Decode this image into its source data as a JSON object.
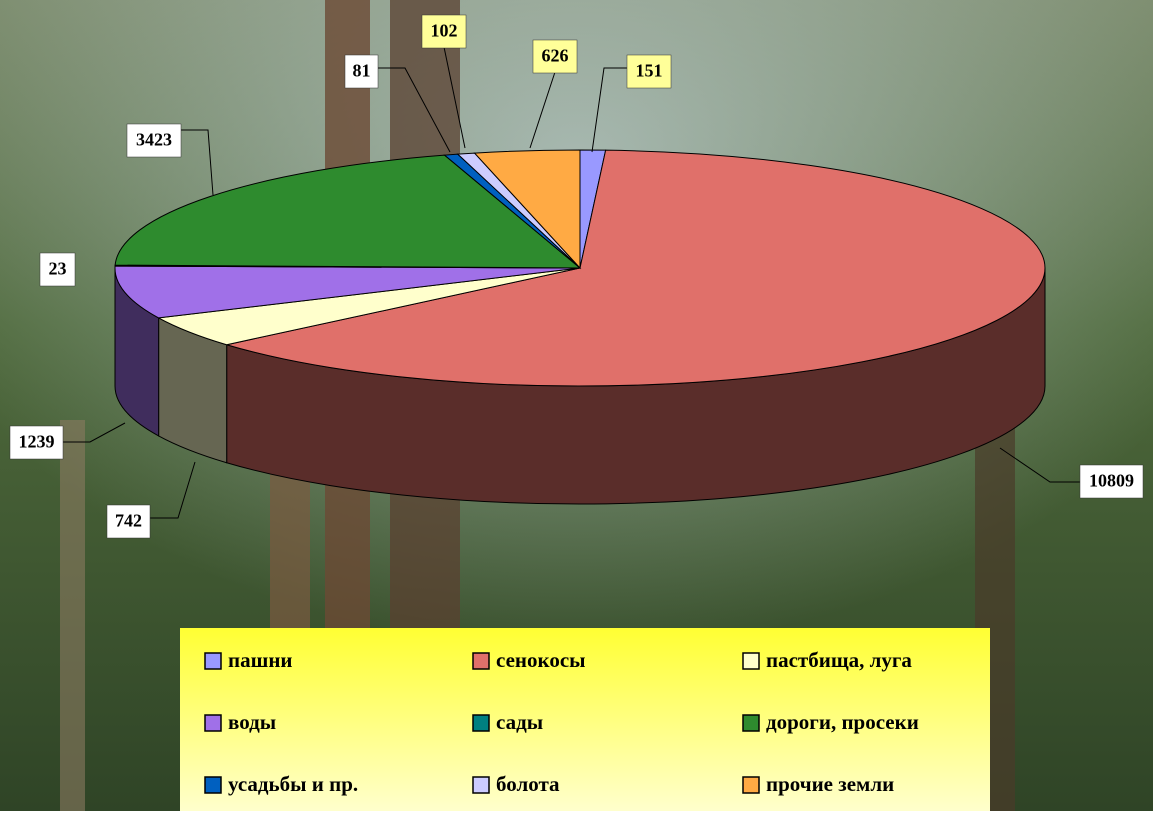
{
  "chart_data": {
    "type": "pie",
    "categories": [
      "пашни",
      "сенокосы",
      "пастбища, луга",
      "воды",
      "сады",
      "дороги, просеки",
      "усадьбы и пр.",
      "болота",
      "прочие земли"
    ],
    "values": [
      151,
      10809,
      742,
      1239,
      23,
      3423,
      81,
      102,
      626
    ],
    "colors": [
      "#9999ff",
      "#e0706a",
      "#ffffcc",
      "#a070e8",
      "#008080",
      "#2e8b2e",
      "#0060c0",
      "#ccccff",
      "#ffaa44"
    ],
    "legend": "bottom"
  }
}
